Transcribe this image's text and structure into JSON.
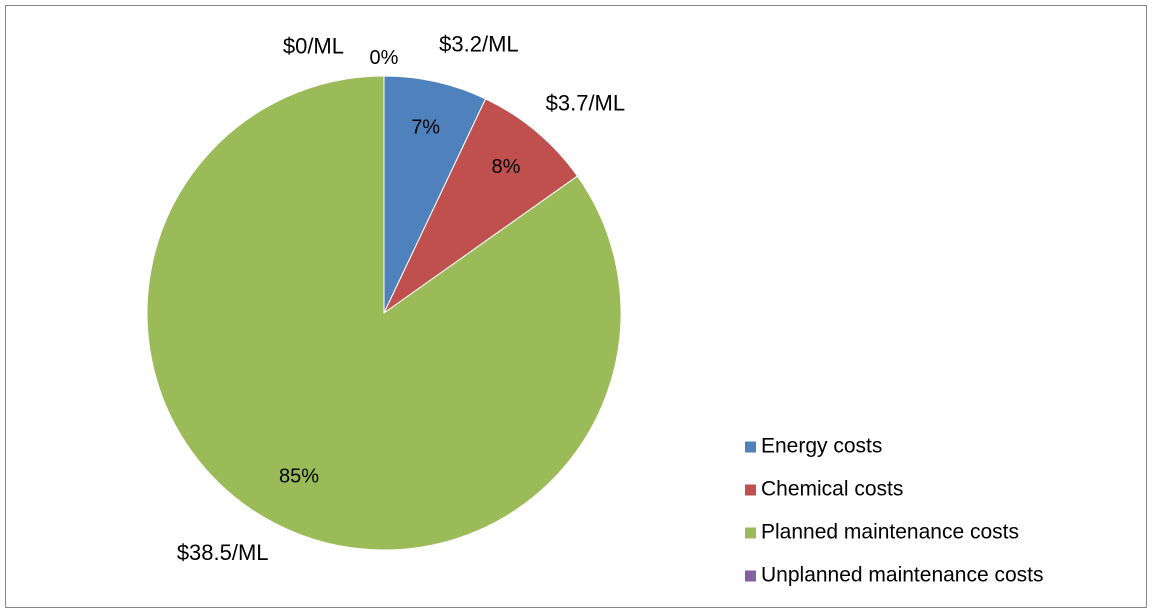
{
  "chart_data": {
    "type": "pie",
    "title": "",
    "slices": [
      {
        "name": "Energy costs",
        "value": 3.2,
        "value_label": "$3.2/ML",
        "percent_label": "7%",
        "color": "#4F81BD"
      },
      {
        "name": "Chemical costs",
        "value": 3.7,
        "value_label": "$3.7/ML",
        "percent_label": "8%",
        "color": "#C0504D"
      },
      {
        "name": "Planned maintenance costs",
        "value": 38.5,
        "value_label": "$38.5/ML",
        "percent_label": "85%",
        "color": "#9BBB59"
      },
      {
        "name": "Unplanned maintenance costs",
        "value": 0,
        "value_label": "$0/ML",
        "percent_label": "0%",
        "color": "#8064A2"
      }
    ],
    "start_angle_deg": 0,
    "direction": "clockwise",
    "legend_position": "bottom-right"
  }
}
